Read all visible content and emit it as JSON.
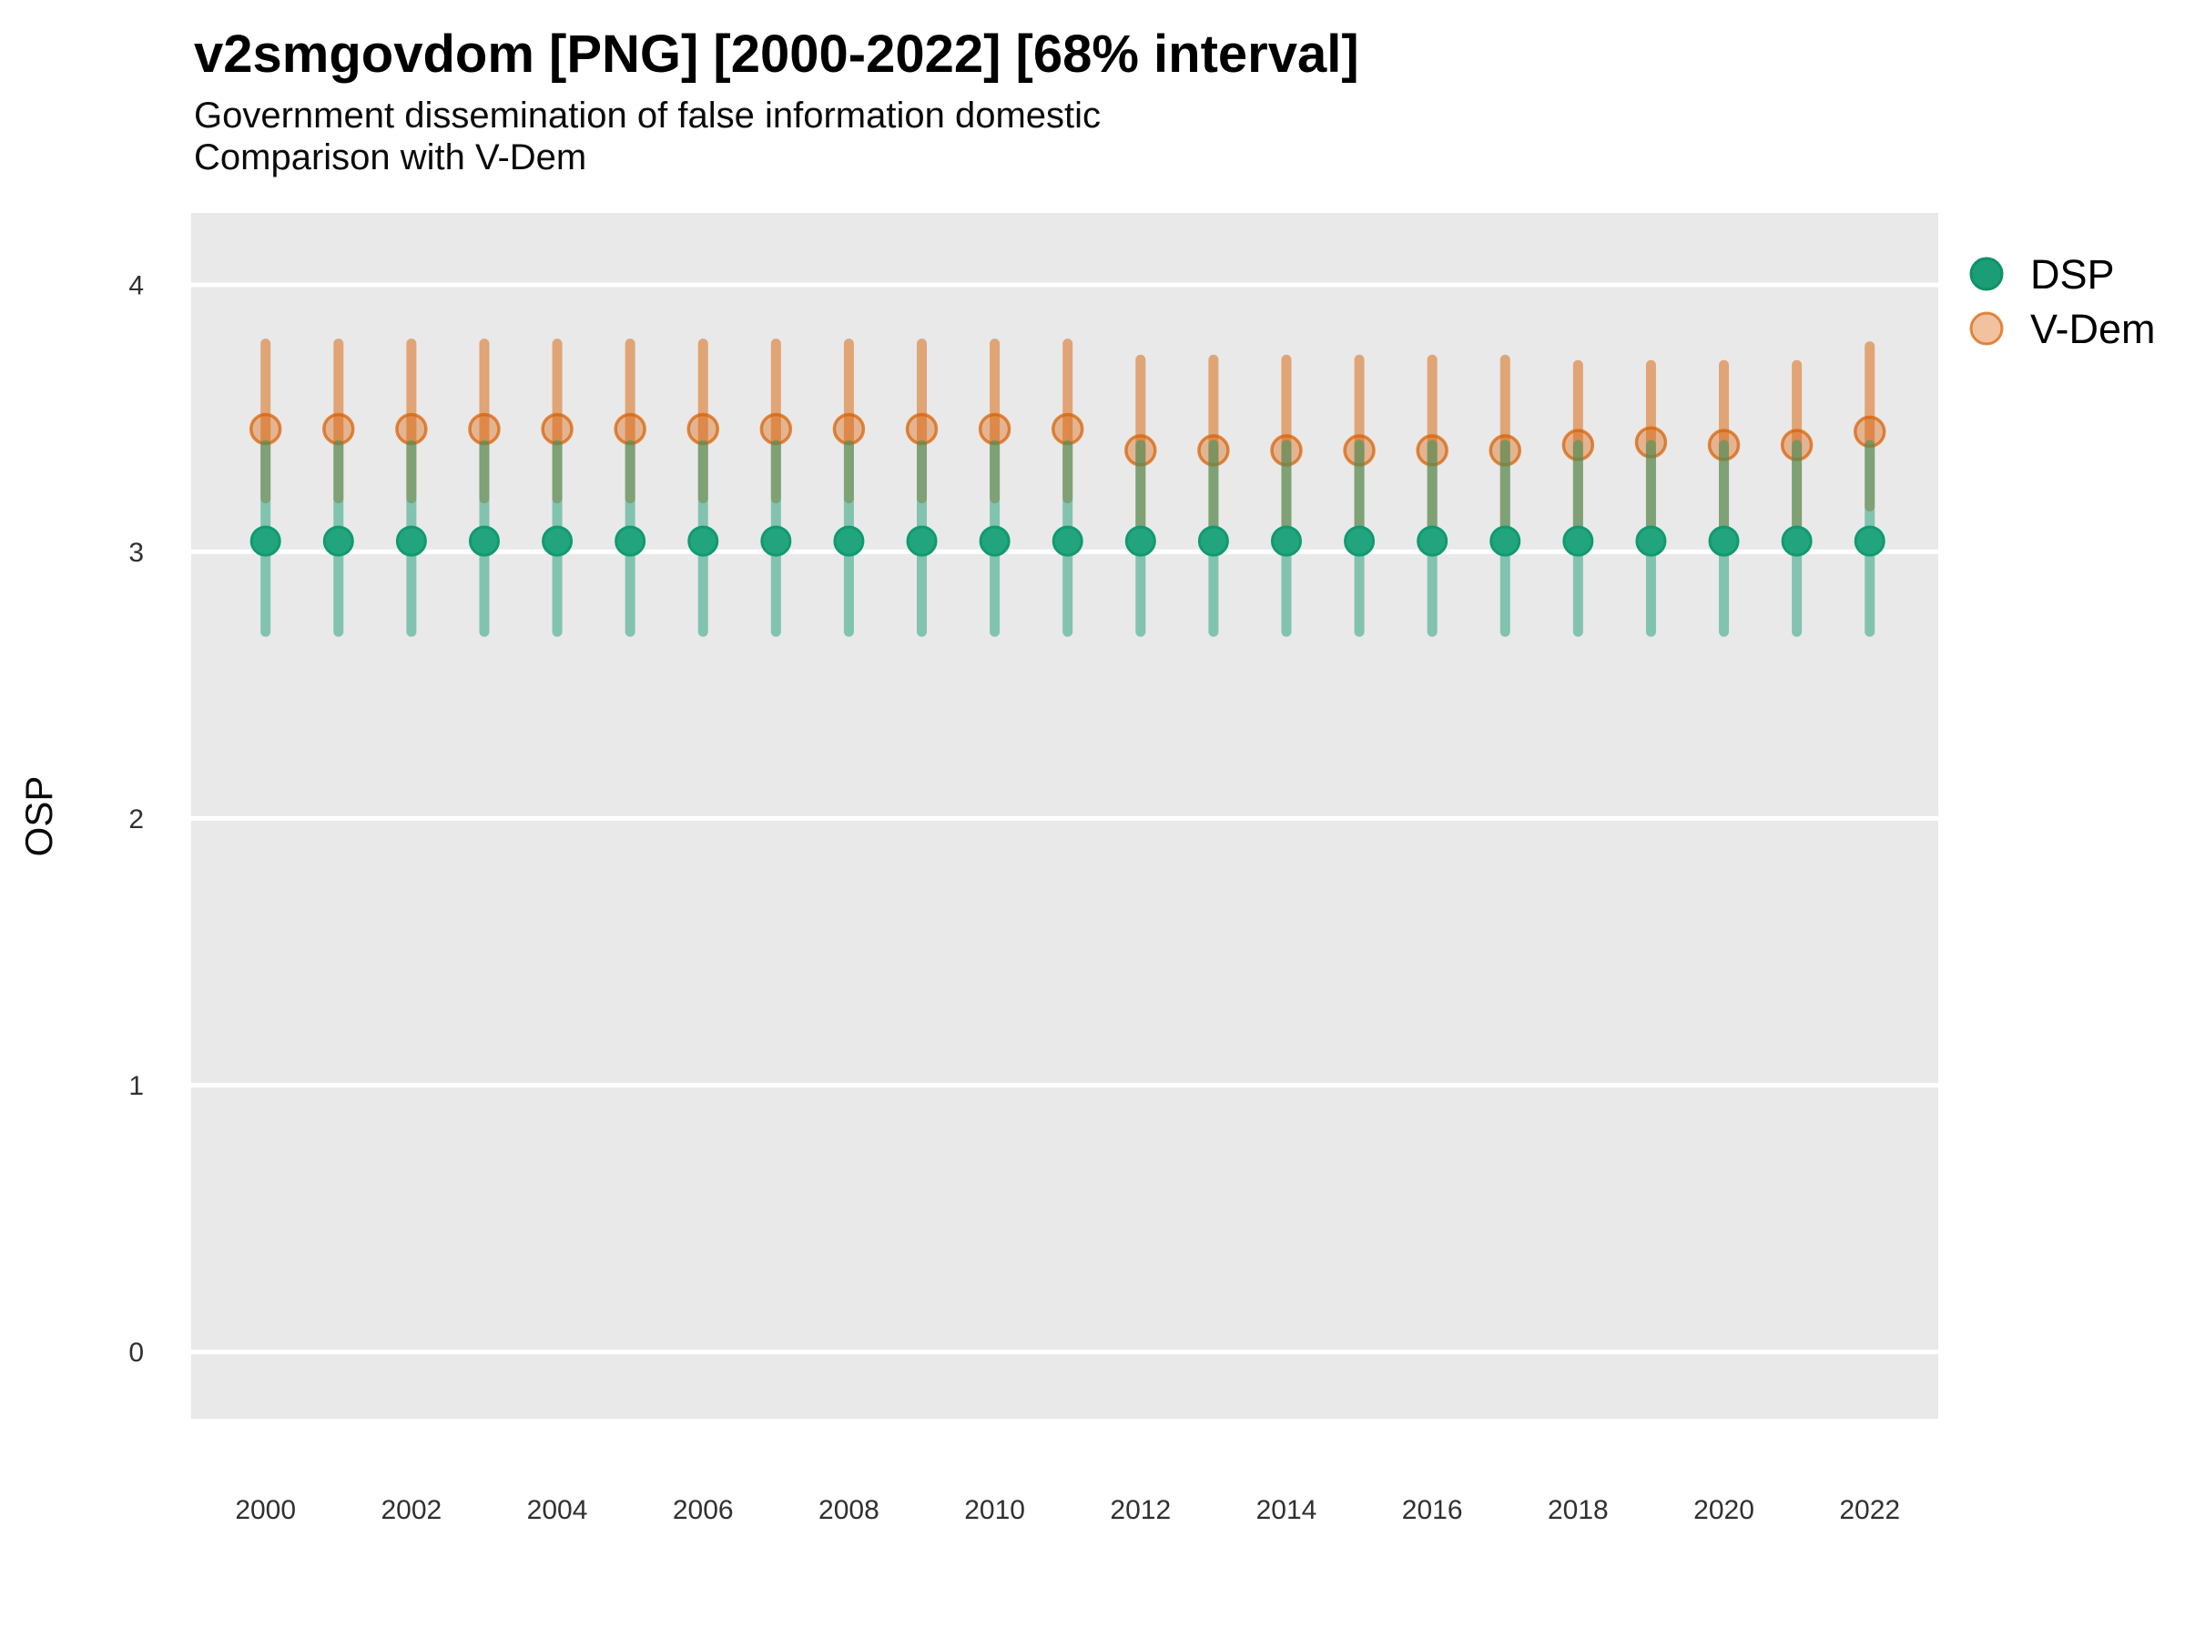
{
  "header": {
    "title": "v2smgovdom [PNG] [2000-2022] [68% interval]",
    "subtitle_line1": "Government dissemination of false information domestic",
    "subtitle_line2": "Comparison with V-Dem"
  },
  "legend": {
    "items": [
      {
        "label": "DSP",
        "color": "#1B9E77",
        "marker": "solid-circle"
      },
      {
        "label": "V-Dem",
        "color": "#D95F02",
        "marker": "open-circle"
      }
    ]
  },
  "chart_data": {
    "type": "pointrange",
    "title": "v2smgovdom [PNG] [2000-2022] [68% interval]",
    "subtitle": [
      "Government dissemination of false information domestic",
      "Comparison with V-Dem"
    ],
    "interval": "68%",
    "xlabel": "",
    "ylabel": "OSP",
    "x": [
      2000,
      2001,
      2002,
      2003,
      2004,
      2005,
      2006,
      2007,
      2008,
      2009,
      2010,
      2011,
      2012,
      2013,
      2014,
      2015,
      2016,
      2017,
      2018,
      2019,
      2020,
      2021,
      2022
    ],
    "series": [
      {
        "name": "DSP",
        "color": "#1B9E77",
        "est": [
          3.04,
          3.04,
          3.04,
          3.04,
          3.04,
          3.04,
          3.04,
          3.04,
          3.04,
          3.04,
          3.04,
          3.04,
          3.04,
          3.04,
          3.04,
          3.04,
          3.04,
          3.04,
          3.04,
          3.04,
          3.04,
          3.04,
          3.04
        ],
        "lo": [
          2.7,
          2.7,
          2.7,
          2.7,
          2.7,
          2.7,
          2.7,
          2.7,
          2.7,
          2.7,
          2.7,
          2.7,
          2.7,
          2.7,
          2.7,
          2.7,
          2.7,
          2.7,
          2.7,
          2.7,
          2.7,
          2.7,
          2.7
        ],
        "hi": [
          3.4,
          3.4,
          3.4,
          3.4,
          3.4,
          3.4,
          3.4,
          3.4,
          3.4,
          3.4,
          3.4,
          3.4,
          3.4,
          3.4,
          3.4,
          3.4,
          3.4,
          3.4,
          3.4,
          3.4,
          3.4,
          3.4,
          3.4
        ]
      },
      {
        "name": "V-Dem",
        "color": "#D95F02",
        "est": [
          3.46,
          3.46,
          3.46,
          3.46,
          3.46,
          3.46,
          3.46,
          3.46,
          3.46,
          3.46,
          3.46,
          3.46,
          3.38,
          3.38,
          3.38,
          3.38,
          3.38,
          3.38,
          3.4,
          3.41,
          3.4,
          3.4,
          3.45
        ],
        "lo": [
          3.2,
          3.2,
          3.2,
          3.2,
          3.2,
          3.2,
          3.2,
          3.2,
          3.2,
          3.2,
          3.2,
          3.2,
          3.08,
          3.08,
          3.08,
          3.08,
          3.08,
          3.08,
          3.1,
          3.1,
          3.1,
          3.1,
          3.17
        ],
        "hi": [
          3.78,
          3.78,
          3.78,
          3.78,
          3.78,
          3.78,
          3.78,
          3.78,
          3.78,
          3.78,
          3.78,
          3.78,
          3.72,
          3.72,
          3.72,
          3.72,
          3.72,
          3.72,
          3.7,
          3.7,
          3.7,
          3.7,
          3.77
        ]
      }
    ],
    "xticks": [
      2000,
      2002,
      2004,
      2006,
      2008,
      2010,
      2012,
      2014,
      2016,
      2018,
      2020,
      2022
    ],
    "yticks": [
      4,
      3,
      2,
      1,
      0
    ],
    "ylim": [
      -0.25,
      4.27
    ],
    "xlim": [
      1998.98,
      2022.94
    ],
    "grid": "horizontal-major-only",
    "grid_color": "#FFFFFF",
    "panel_bg": "#E9E9E9",
    "legend_position": "top-right"
  }
}
